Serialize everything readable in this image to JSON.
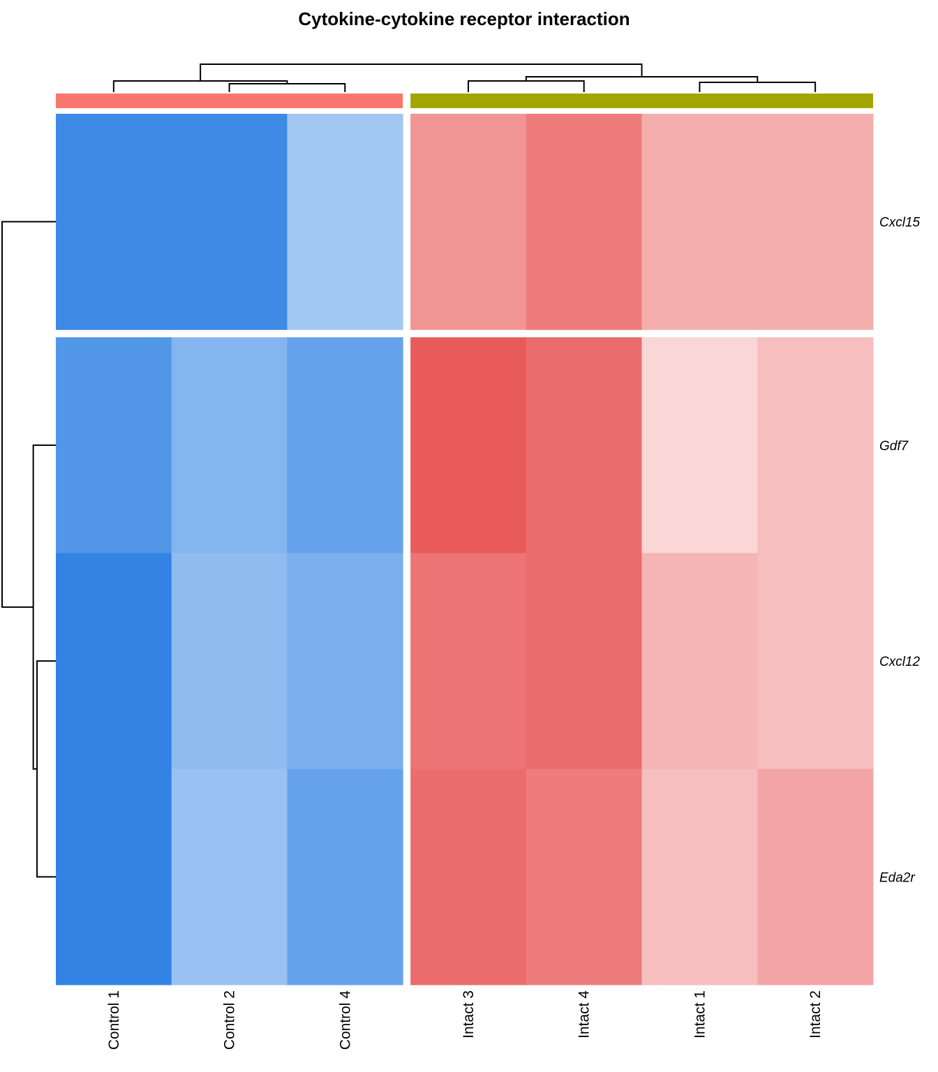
{
  "chart_data": {
    "type": "heatmap",
    "title": "Cytokine-cytokine receptor interaction",
    "columns": [
      "Control 1",
      "Control 2",
      "Control 4",
      "Intact 3",
      "Intact 4",
      "Intact 1",
      "Intact 2"
    ],
    "rows": [
      "Cxcl15",
      "Gdf7",
      "Cxcl12",
      "Eda2r"
    ],
    "column_groups": [
      {
        "columns": [
          "Control 1",
          "Control 2",
          "Control 4"
        ],
        "color": "#F8766D"
      },
      {
        "columns": [
          "Intact 3",
          "Intact 4",
          "Intact 1",
          "Intact 2"
        ],
        "color": "#A3A500"
      }
    ],
    "row_split_after": [
      0
    ],
    "values": [
      [
        -1.9,
        -1.9,
        -0.9,
        1.3,
        1.6,
        1.0,
        1.0
      ],
      [
        -1.7,
        -1.2,
        -1.5,
        2.0,
        1.8,
        0.5,
        0.8
      ],
      [
        -2.0,
        -1.1,
        -1.3,
        1.7,
        1.8,
        0.9,
        0.8
      ],
      [
        -2.0,
        -1.0,
        -1.5,
        1.8,
        1.6,
        0.8,
        1.1
      ]
    ],
    "color_scale": {
      "low": "#1F77E1",
      "mid": "#FFFFFF",
      "high": "#E74B4B",
      "limits": [
        -2.2,
        2.2
      ]
    },
    "column_dendrogram": {
      "nodes": [
        {
          "a": 1,
          "b": 2,
          "height": 0.3
        },
        {
          "a": 0,
          "b": "n0",
          "height": 0.4
        },
        {
          "a": 5,
          "b": 6,
          "height": 0.35
        },
        {
          "a": 3,
          "b": 4,
          "height": 0.4
        },
        {
          "a": "n3",
          "b": "n2",
          "height": 0.55
        },
        {
          "a": "n1",
          "b": "n4",
          "height": 1.0
        }
      ]
    },
    "row_dendrogram": {
      "nodes": [
        {
          "a": 2,
          "b": 3,
          "height": 0.35
        },
        {
          "a": 1,
          "b": "n0",
          "height": 0.42
        },
        {
          "a": 0,
          "b": "n1",
          "height": 1.0
        }
      ]
    },
    "grid": false,
    "legend": "none"
  }
}
